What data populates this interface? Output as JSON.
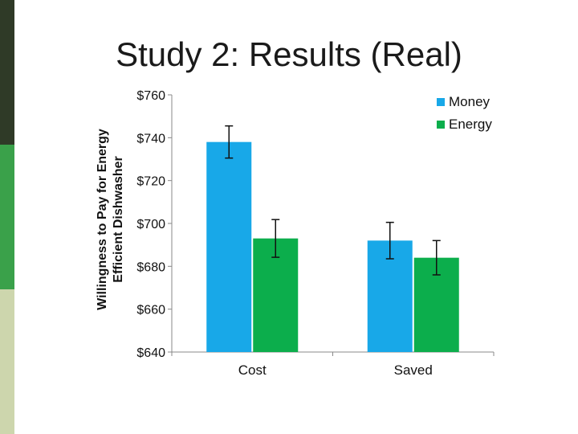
{
  "slide": {
    "title": "Study 2: Results (Real)"
  },
  "chart_data": {
    "type": "bar",
    "title": "",
    "xlabel": "",
    "ylabel": "Willingness to Pay for Energy Efficient Dishwasher",
    "ylabel_lines": [
      "Willingness to Pay for Energy",
      "Efficient Dishwasher"
    ],
    "ylim": [
      640,
      760
    ],
    "yticks": [
      640,
      660,
      680,
      700,
      720,
      740,
      760
    ],
    "ytick_labels": [
      "$640",
      "$660",
      "$680",
      "$700",
      "$720",
      "$740",
      "$760"
    ],
    "categories": [
      "Cost",
      "Saved"
    ],
    "series": [
      {
        "name": "Money",
        "color": "#18a8e8",
        "values": [
          738,
          692
        ],
        "error": [
          7.5,
          8.5
        ]
      },
      {
        "name": "Energy",
        "color": "#0cae4c",
        "values": [
          693,
          684
        ],
        "error": [
          8.8,
          8.0
        ]
      }
    ],
    "error_bars": true,
    "grid": false,
    "legend_position": "top-right"
  }
}
